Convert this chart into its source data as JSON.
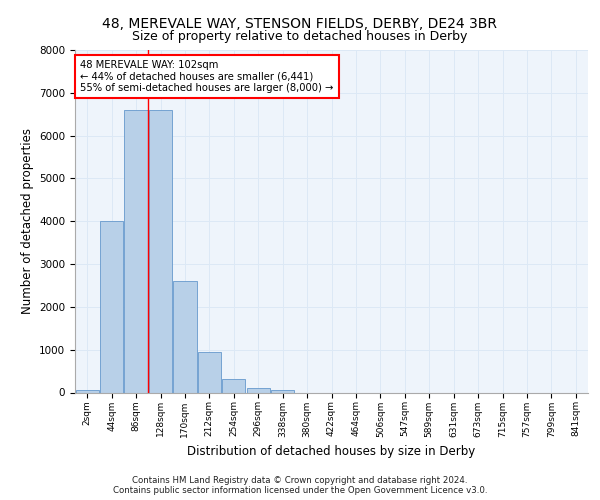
{
  "title_line1": "48, MEREVALE WAY, STENSON FIELDS, DERBY, DE24 3BR",
  "title_line2": "Size of property relative to detached houses in Derby",
  "xlabel": "Distribution of detached houses by size in Derby",
  "ylabel": "Number of detached properties",
  "bar_values": [
    50,
    4000,
    6600,
    6600,
    2600,
    950,
    320,
    100,
    60,
    0,
    0,
    0,
    0,
    0,
    0,
    0,
    0,
    0,
    0,
    0,
    0
  ],
  "bar_labels": [
    "2sqm",
    "44sqm",
    "86sqm",
    "128sqm",
    "170sqm",
    "212sqm",
    "254sqm",
    "296sqm",
    "338sqm",
    "380sqm",
    "422sqm",
    "464sqm",
    "506sqm",
    "547sqm",
    "589sqm",
    "631sqm",
    "673sqm",
    "715sqm",
    "757sqm",
    "799sqm",
    "841sqm"
  ],
  "bar_color": "#b8d0e8",
  "bar_edge_color": "#6699cc",
  "grid_color": "#dce8f5",
  "background_color": "#eef4fb",
  "vline_x": 2.5,
  "vline_color": "red",
  "annotation_text": "48 MEREVALE WAY: 102sqm\n← 44% of detached houses are smaller (6,441)\n55% of semi-detached houses are larger (8,000) →",
  "annotation_box_color": "white",
  "annotation_box_edge": "red",
  "ylim": [
    0,
    8000
  ],
  "yticks": [
    0,
    1000,
    2000,
    3000,
    4000,
    5000,
    6000,
    7000,
    8000
  ],
  "footnote_line1": "Contains HM Land Registry data © Crown copyright and database right 2024.",
  "footnote_line2": "Contains public sector information licensed under the Open Government Licence v3.0.",
  "title_fontsize": 10,
  "subtitle_fontsize": 9,
  "label_fontsize": 8.5
}
